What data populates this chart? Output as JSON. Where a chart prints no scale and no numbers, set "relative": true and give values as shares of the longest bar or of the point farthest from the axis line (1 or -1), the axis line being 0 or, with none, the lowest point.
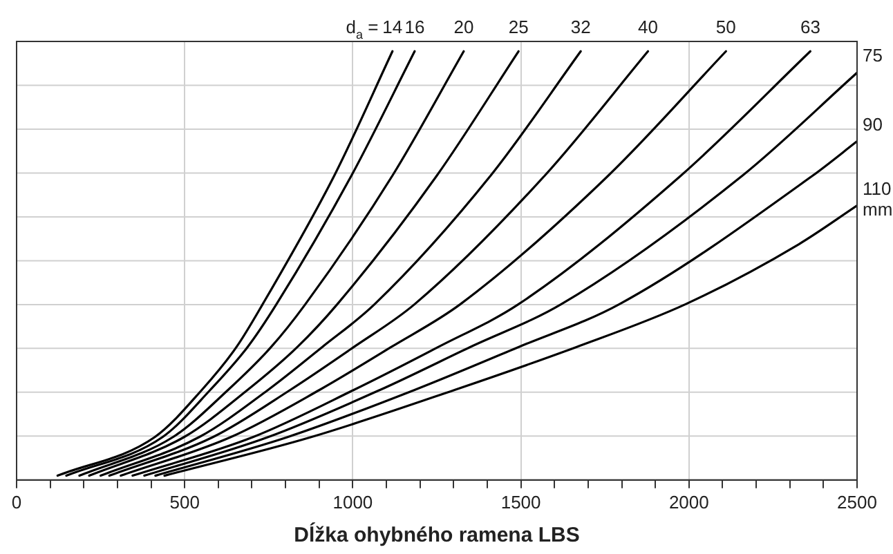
{
  "chart_data": {
    "type": "line",
    "relative": true,
    "xlabel": "Dĺžka ohybného ramena LBS",
    "grid": true,
    "marker": "none",
    "line_style": "solid",
    "legend": false,
    "annotations": [
      "d$_{a}$ =",
      "mm"
    ],
    "xlim": [
      0,
      2500
    ],
    "xticks": [
      0,
      {
        "value": 100,
        "label": null
      },
      {
        "value": 200,
        "label": null
      },
      {
        "value": 300,
        "label": null
      },
      {
        "value": 400,
        "label": null
      },
      500,
      {
        "value": 600,
        "label": null
      },
      {
        "value": 700,
        "label": null
      },
      {
        "value": 800,
        "label": null
      },
      {
        "value": 900,
        "label": null
      },
      1000,
      {
        "value": 1100,
        "label": null
      },
      {
        "value": 1200,
        "label": null
      },
      {
        "value": 1300,
        "label": null
      },
      {
        "value": 1400,
        "label": null
      },
      1500,
      {
        "value": 1600,
        "label": null
      },
      {
        "value": 1700,
        "label": null
      },
      {
        "value": 1800,
        "label": null
      },
      {
        "value": 1900,
        "label": null
      },
      2000,
      {
        "value": 2100,
        "label": null
      },
      {
        "value": 2200,
        "label": null
      },
      {
        "value": 2300,
        "label": null
      },
      {
        "value": 2400,
        "label": null
      },
      2500
    ],
    "series": [
      {
        "name": "14",
        "color": "#000000",
        "x": [
          122,
          411,
          551,
          654,
          732,
          945,
          1118
        ],
        "values": [
          0.01,
          0.1,
          0.21,
          0.31,
          0.41,
          0.71,
          1
        ]
      },
      {
        "name": "16",
        "color": "#000000",
        "x": [
          148,
          434,
          576,
          687,
          773,
          996,
          1184
        ],
        "values": [
          0.01,
          0.1,
          0.21,
          0.31,
          0.41,
          0.71,
          1
        ]
      },
      {
        "name": "20",
        "color": "#000000",
        "x": [
          187,
          465,
          629,
          757,
          859,
          1118,
          1330
        ],
        "values": [
          0.01,
          0.1,
          0.21,
          0.31,
          0.41,
          0.71,
          1
        ]
      },
      {
        "name": "25",
        "color": "#000000",
        "x": [
          216,
          498,
          687,
          835,
          954,
          1250,
          1493
        ],
        "values": [
          0.01,
          0.1,
          0.21,
          0.31,
          0.41,
          0.71,
          1
        ]
      },
      {
        "name": "32",
        "color": "#000000",
        "x": [
          250,
          543,
          748,
          909,
          1065,
          1410,
          1678
        ],
        "values": [
          0.01,
          0.1,
          0.21,
          0.31,
          0.41,
          0.71,
          1
        ]
      },
      {
        "name": "40",
        "color": "#000000",
        "x": [
          276,
          584,
          814,
          1003,
          1184,
          1571,
          1878
        ],
        "values": [
          0.01,
          0.1,
          0.21,
          0.31,
          0.41,
          0.71,
          1
        ]
      },
      {
        "name": "50",
        "color": "#000000",
        "x": [
          310,
          637,
          901,
          1114,
          1320,
          1760,
          2110
        ],
        "values": [
          0.01,
          0.1,
          0.21,
          0.31,
          0.41,
          0.71,
          1
        ]
      },
      {
        "name": "63",
        "color": "#000000",
        "x": [
          345,
          703,
          1003,
          1254,
          1493,
          1976,
          2361
        ],
        "values": [
          0.01,
          0.1,
          0.21,
          0.31,
          0.41,
          0.71,
          1
        ]
      },
      {
        "name": "75",
        "color": "#000000",
        "x": [
          380,
          748,
          1081,
          1349,
          1620,
          2159,
          2500
        ],
        "values": [
          0.01,
          0.1,
          0.21,
          0.31,
          0.41,
          0.71,
          0.95
        ]
      },
      {
        "name": "90",
        "color": "#000000",
        "x": [
          413,
          806,
          1184,
          1493,
          1793,
          2368,
          2500
        ],
        "values": [
          0.01,
          0.1,
          0.21,
          0.31,
          0.41,
          0.71,
          0.79
        ]
      },
      {
        "name": "110",
        "color": "#000000",
        "x": [
          440,
          876,
          1303,
          1665,
          1990,
          2327,
          2500
        ],
        "values": [
          0.01,
          0.1,
          0.21,
          0.31,
          0.41,
          0.55,
          0.64
        ]
      }
    ]
  }
}
